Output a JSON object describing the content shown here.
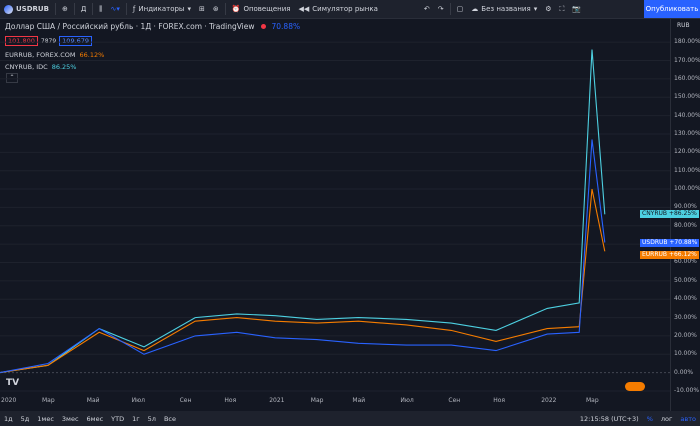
{
  "toolbar": {
    "symbol": "USDRUB",
    "interval": "Д",
    "indicators": "Индикаторы",
    "alerts": "Оповещения",
    "replay": "Симулятор рынка",
    "layout_name": "Без названия",
    "publish": "Опубликовать"
  },
  "legend": {
    "title": "Доллар США / Российский рубль · 1Д · FOREX.com · TradingView",
    "change": "70.88%",
    "bid": "101.800",
    "spread": "7879",
    "ask": "109.679",
    "ind1_name": "EURRUB, FOREX.COM",
    "ind1_value": "66.12%",
    "ind2_name": "CNYRUB, IDC",
    "ind2_value": "86.25%"
  },
  "price_scale": {
    "unit": "RUB",
    "ticks": [
      "180.00%",
      "170.00%",
      "160.00%",
      "150.00%",
      "140.00%",
      "130.00%",
      "120.00%",
      "110.00%",
      "100.00%",
      "90.00%",
      "80.00%",
      "70.00%",
      "60.00%",
      "50.00%",
      "40.00%",
      "30.00%",
      "20.00%",
      "10.00%",
      "0.00%",
      "-10.00%"
    ]
  },
  "tags": {
    "cny": "CNYRUB +86.25%",
    "usd": "USDRUB +70.88%",
    "eur": "EURRUB +66.12%"
  },
  "time_axis": {
    "labels": [
      "2020",
      "Мар",
      "Май",
      "Июл",
      "Сен",
      "Ноя",
      "2021",
      "Мар",
      "Май",
      "Июл",
      "Сен",
      "Ноя",
      "2022",
      "Мар"
    ]
  },
  "bottom_bar": {
    "ranges": [
      "1д",
      "5д",
      "1мес",
      "3мес",
      "6мес",
      "YTD",
      "1г",
      "5л",
      "Все"
    ],
    "clock": "12:15:58 (UTC+3)",
    "percent": "%",
    "log": "лог",
    "auto": "авто"
  },
  "colors": {
    "usd": "#2962ff",
    "eur": "#f57c00",
    "cny": "#4dd0e1",
    "bg": "#131722",
    "publish": "#2962ff"
  },
  "chart_data": {
    "type": "line",
    "x": [
      "2020-01",
      "2020-03",
      "2020-05",
      "2020-07",
      "2020-09",
      "2020-11",
      "2021-01",
      "2021-03",
      "2021-05",
      "2021-07",
      "2021-09",
      "2021-11",
      "2022-01",
      "2022-02",
      "2022-03-07",
      "2022-03-15"
    ],
    "series": [
      {
        "name": "USDRUB",
        "values": [
          0,
          5,
          24,
          10,
          20,
          22,
          19,
          18,
          16,
          15,
          15,
          12,
          21,
          22,
          127,
          70.88
        ]
      },
      {
        "name": "EURRUB",
        "values": [
          0,
          4,
          22,
          12,
          28,
          30,
          28,
          27,
          28,
          26,
          23,
          17,
          24,
          25,
          100,
          66.12
        ]
      },
      {
        "name": "CNYRUB",
        "values": [
          0,
          4,
          24,
          14,
          30,
          32,
          31,
          29,
          30,
          29,
          27,
          23,
          35,
          38,
          176,
          86.25
        ]
      }
    ],
    "ylim": [
      -10,
      185
    ],
    "yunit": "%"
  }
}
